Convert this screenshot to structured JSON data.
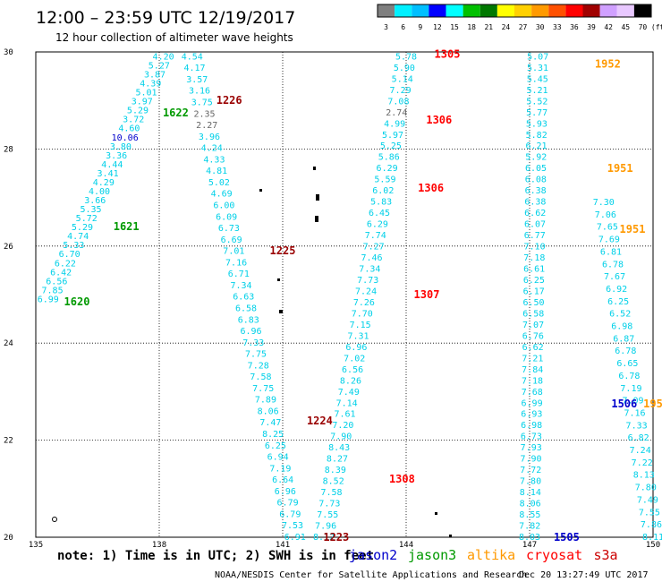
{
  "header": {
    "title": "12:00 – 23:59 UTC 12/19/2017",
    "subtitle": "12 hour collection of altimeter wave heights"
  },
  "colorbar": {
    "ticks": [
      "3",
      "6",
      "9",
      "12",
      "15",
      "18",
      "21",
      "24",
      "27",
      "30",
      "33",
      "36",
      "39",
      "42",
      "45",
      "70",
      "(ft)"
    ],
    "colors": [
      "#7f7f7f",
      "#00f0ff",
      "#00bfff",
      "#0000ff",
      "#00ffff",
      "#00c000",
      "#007800",
      "#ffff00",
      "#ffd000",
      "#ff9a00",
      "#ff5000",
      "#ff0000",
      "#a00000",
      "#d0a0ff",
      "#e8c8ff",
      "#000000"
    ]
  },
  "footer": {
    "note": "note: 1) Time is in UTC; 2) SWH is in feet",
    "credit": "NOAA/NESDIS Center for Satellite Applications and Research",
    "timestamp": "Dec 20 13:27:49 UTC 2017",
    "legend": [
      {
        "name": "jason2",
        "color": "#0000cc"
      },
      {
        "name": "jason3",
        "color": "#009900"
      },
      {
        "name": "altika",
        "color": "#ff9900"
      },
      {
        "name": "cryosat",
        "color": "#ff0000"
      },
      {
        "name": "s3a",
        "color": "#cc0000"
      }
    ]
  },
  "chart_data": {
    "type": "scatter",
    "xlim": [
      135,
      150
    ],
    "ylim": [
      20,
      30
    ],
    "x_ticks": [
      "135",
      "138",
      "141",
      "144",
      "147",
      "150"
    ],
    "y_ticks": [
      "20",
      "22",
      "24",
      "26",
      "28",
      "30"
    ],
    "grid": "dotted",
    "tracks": [
      {
        "id": "j3-left",
        "color": "#00d0e8",
        "lon0": 135.3,
        "lat0": 24.9,
        "lon1": 138.1,
        "lat1": 29.9,
        "values": [
          "6.99",
          "7.85",
          "6.56",
          "6.42",
          "6.22",
          "6.70",
          "5.33",
          "4.74",
          "5.29",
          "5.72",
          "5.35",
          "3.66",
          "4.00",
          "4.29",
          "3.41",
          "4.44",
          "3.36",
          "3.80",
          "10.06",
          "4.60",
          "3.72",
          "5.29",
          "3.97",
          "5.01",
          "4.39",
          "3.87",
          "5.27",
          "4.20"
        ]
      },
      {
        "id": "s3a-left",
        "color": "#00d0e8",
        "lon0": 141.3,
        "lat0": 20.0,
        "lon1": 138.8,
        "lat1": 29.9,
        "values": [
          "6.91",
          "7.53",
          "6.79",
          "6.79",
          "6.96",
          "6.64",
          "7.19",
          "6.94",
          "6.25",
          "8.25",
          "7.47",
          "8.06",
          "7.89",
          "7.75",
          "7.58",
          "7.28",
          "7.75",
          "7.33",
          "6.96",
          "6.83",
          "6.58",
          "6.63",
          "7.34",
          "6.71",
          "7.16",
          "7.01",
          "6.69",
          "6.73",
          "6.09",
          "6.00",
          "4.69",
          "5.02",
          "4.81",
          "4.33",
          "4.24",
          "3.96",
          "2.27",
          "2.35",
          "3.75",
          "3.16",
          "3.57",
          "4.17",
          "4.54"
        ]
      },
      {
        "id": "c-mid",
        "color": "#00d0e8",
        "lon0": 142.0,
        "lat0": 20.0,
        "lon1": 144.0,
        "lat1": 29.9,
        "values": [
          "8.12",
          "7.96",
          "7.55",
          "7.73",
          "7.58",
          "8.52",
          "8.39",
          "8.27",
          "8.43",
          "7.90",
          "7.20",
          "7.61",
          "7.14",
          "7.49",
          "8.26",
          "6.56",
          "7.02",
          "6.96",
          "7.31",
          "7.15",
          "7.70",
          "7.26",
          "7.24",
          "7.73",
          "7.34",
          "7.46",
          "7.27",
          "7.74",
          "6.29",
          "6.45",
          "5.83",
          "6.02",
          "5.59",
          "6.29",
          "5.86",
          "5.25",
          "5.97",
          "4.99",
          "2.74",
          "7.08",
          "7.29",
          "5.14",
          "5.90",
          "5.78"
        ]
      },
      {
        "id": "a-right",
        "color": "#00d0e8",
        "lon0": 147.0,
        "lat0": 20.0,
        "lon1": 147.2,
        "lat1": 29.9,
        "values": [
          "8.03",
          "7.82",
          "8.55",
          "8.06",
          "8.14",
          "7.80",
          "7.72",
          "7.90",
          "7.93",
          "6.73",
          "6.98",
          "6.93",
          "6.99",
          "7.68",
          "7.18",
          "7.84",
          "7.21",
          "6.62",
          "6.76",
          "7.07",
          "6.58",
          "6.50",
          "6.17",
          "6.25",
          "6.61",
          "7.18",
          "7.10",
          "6.77",
          "6.07",
          "6.62",
          "6.38",
          "6.38",
          "6.08",
          "6.05",
          "5.92",
          "6.21",
          "5.82",
          "5.93",
          "5.77",
          "5.52",
          "5.21",
          "5.45",
          "5.31",
          "5.07"
        ]
      },
      {
        "id": "j2-right",
        "color": "#00d0e8",
        "lon0": 150.0,
        "lat0": 20.0,
        "lon1": 148.8,
        "lat1": 26.9,
        "values": [
          "8.11",
          "7.86",
          "7.55",
          "7.49",
          "7.80",
          "8.13",
          "7.22",
          "7.24",
          "6.82",
          "7.33",
          "7.16",
          "7.09",
          "7.19",
          "6.78",
          "6.65",
          "6.78",
          "6.87",
          "6.98",
          "6.52",
          "6.25",
          "6.92",
          "7.67",
          "6.78",
          "6.81",
          "7.69",
          "7.65",
          "7.06",
          "7.30"
        ]
      }
    ],
    "labels": [
      {
        "text": "1620",
        "color": "#009900",
        "lon": 136.0,
        "lat": 24.85
      },
      {
        "text": "1621",
        "color": "#009900",
        "lon": 137.2,
        "lat": 26.4
      },
      {
        "text": "1622",
        "color": "#009900",
        "lon": 138.4,
        "lat": 28.75
      },
      {
        "text": "1226",
        "color": "#990000",
        "lon": 139.7,
        "lat": 29.0
      },
      {
        "text": "1225",
        "color": "#990000",
        "lon": 141.0,
        "lat": 25.9
      },
      {
        "text": "1224",
        "color": "#990000",
        "lon": 141.9,
        "lat": 22.4
      },
      {
        "text": "1223",
        "color": "#990000",
        "lon": 142.3,
        "lat": 20.0
      },
      {
        "text": "1305",
        "color": "#ff0000",
        "lon": 145.0,
        "lat": 29.95
      },
      {
        "text": "1306",
        "color": "#ff0000",
        "lon": 144.8,
        "lat": 28.6
      },
      {
        "text": "1306",
        "color": "#ff0000",
        "lon": 144.6,
        "lat": 27.2
      },
      {
        "text": "1307",
        "color": "#ff0000",
        "lon": 144.5,
        "lat": 25.0
      },
      {
        "text": "1308",
        "color": "#ff0000",
        "lon": 143.9,
        "lat": 21.2
      },
      {
        "text": "1952",
        "color": "#ff9900",
        "lon": 148.9,
        "lat": 29.75
      },
      {
        "text": "1951",
        "color": "#ff9900",
        "lon": 149.2,
        "lat": 27.6
      },
      {
        "text": "1951",
        "color": "#ff9900",
        "lon": 149.5,
        "lat": 26.35
      },
      {
        "text": "195",
        "color": "#ff9900",
        "lon": 150.0,
        "lat": 22.75
      },
      {
        "text": "1506",
        "color": "#0000cc",
        "lon": 149.3,
        "lat": 22.75
      },
      {
        "text": "1505",
        "color": "#0000cc",
        "lon": 147.9,
        "lat": 20.0
      }
    ],
    "outliers": [
      {
        "track": "j3-left",
        "index": 18,
        "color": "#0000cc"
      },
      {
        "track": "s3a-left",
        "index": 36,
        "color": "#666666"
      },
      {
        "track": "s3a-left",
        "index": 37,
        "color": "#666666"
      },
      {
        "track": "c-mid",
        "index": 38,
        "color": "#666666"
      }
    ]
  }
}
